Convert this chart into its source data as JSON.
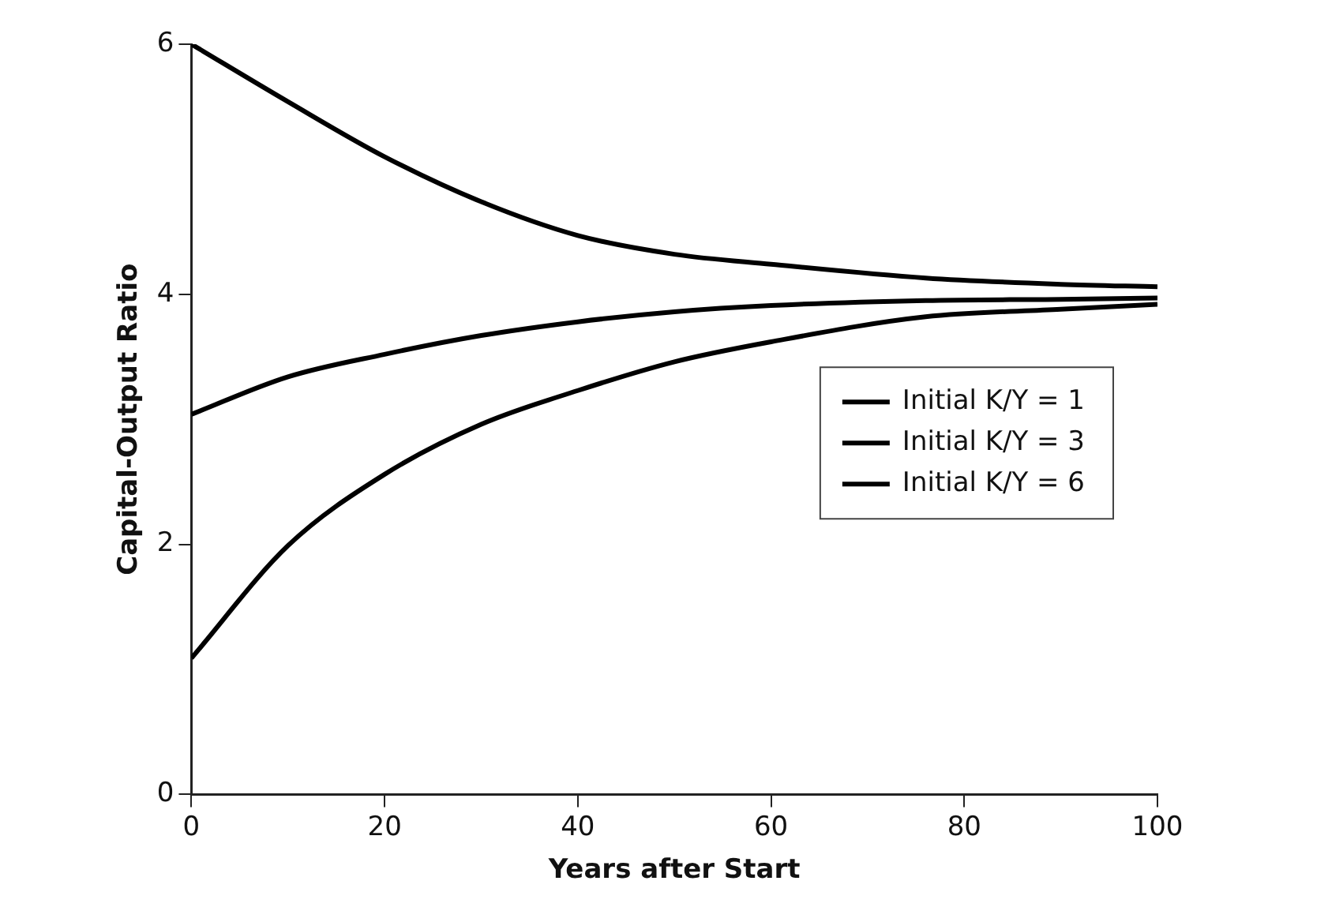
{
  "chart_data": {
    "type": "line",
    "xlabel": "Years after Start",
    "ylabel": "Capital-Output Ratio",
    "x": [
      0,
      10,
      20,
      30,
      40,
      50,
      60,
      76,
      90,
      100
    ],
    "series": [
      {
        "name": "Initial K/Y = 1",
        "color": "#000000",
        "values": [
          1.09,
          1.99,
          2.56,
          2.96,
          3.23,
          3.46,
          3.62,
          3.82,
          3.88,
          3.92
        ]
      },
      {
        "name": "Initial K/Y = 3",
        "color": "#000000",
        "values": [
          3.04,
          3.34,
          3.52,
          3.67,
          3.78,
          3.86,
          3.91,
          3.95,
          3.96,
          3.97
        ]
      },
      {
        "name": "Initial K/Y = 6",
        "color": "#000000",
        "values": [
          6,
          5.54,
          5.1,
          4.74,
          4.47,
          4.32,
          4.24,
          4.13,
          4.08,
          4.06
        ]
      }
    ],
    "xlim": [
      0,
      100
    ],
    "xticks": [
      0,
      20,
      40,
      60,
      80,
      100
    ],
    "ylim": [
      0,
      6
    ],
    "yticks": [
      0,
      2,
      4,
      6
    ],
    "grid": false,
    "legend": "right",
    "marker": "none",
    "line_style": "solid"
  }
}
